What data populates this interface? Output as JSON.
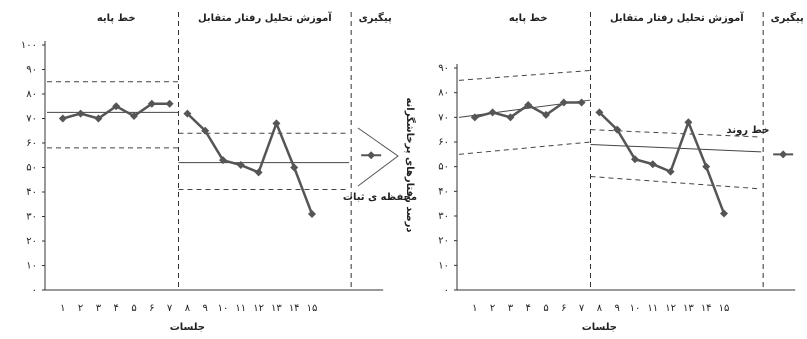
{
  "chart_data": [
    {
      "type": "line",
      "phases": [
        "خط پایه",
        "آموزش تحلیل رفتار متقابل",
        "پیگیری"
      ],
      "annotation": "محفظه ی ثبات",
      "xlabel": "جلسات",
      "categories": [
        "۱",
        "۲",
        "۳",
        "۴",
        "۵",
        "۶",
        "۷",
        "۸",
        "۹",
        "۱۰",
        "۱۱",
        "۱۲",
        "۱۳",
        "۱۴",
        "۱۵"
      ],
      "series": [
        {
          "color": "#555555",
          "values": [
            70,
            72,
            70,
            75,
            71,
            76,
            76,
            null,
            null,
            null,
            null,
            null,
            null,
            null,
            null
          ]
        },
        {
          "color": "#555555",
          "values": [
            null,
            null,
            null,
            null,
            null,
            null,
            null,
            72,
            65,
            53,
            51,
            48,
            68,
            50,
            31
          ]
        }
      ],
      "followup": 55,
      "lines": [
        {
          "phase": 0,
          "y": [
            72.5,
            72.5
          ],
          "dash": false
        },
        {
          "phase": 0,
          "y": [
            85,
            85
          ],
          "dash": true
        },
        {
          "phase": 0,
          "y": [
            58,
            58
          ],
          "dash": true
        },
        {
          "phase": 1,
          "y": [
            52,
            52
          ],
          "dash": false
        },
        {
          "phase": 1,
          "y": [
            64,
            64
          ],
          "dash": true
        },
        {
          "phase": 1,
          "y": [
            41,
            41
          ],
          "dash": true
        }
      ],
      "ylim": [
        0,
        100
      ],
      "yticks": [
        {
          "value": 0,
          "label": "۰"
        },
        {
          "value": 10,
          "label": "۱۰"
        },
        {
          "value": 20,
          "label": "۲۰"
        },
        {
          "value": 30,
          "label": "۳۰"
        },
        {
          "value": 40,
          "label": "۴۰"
        },
        {
          "value": 50,
          "label": "۵۰"
        },
        {
          "value": 60,
          "label": "۶۰"
        },
        {
          "value": 70,
          "label": "۷۰"
        },
        {
          "value": 80,
          "label": "۸۰"
        },
        {
          "value": 90,
          "label": "۹۰"
        },
        {
          "value": 100,
          "label": "۱۰۰"
        }
      ]
    },
    {
      "type": "line",
      "phases": [
        "خط پایه",
        "آموزش تحلیل رفتار متقابل",
        "پیگیری"
      ],
      "annotation": "خط روند",
      "ylabel": "درصد رفتارهای پرخاشگرانه",
      "xlabel": "جلسات",
      "categories": [
        "۱",
        "۲",
        "۳",
        "۴",
        "۵",
        "۶",
        "۷",
        "۸",
        "۹",
        "۱۰",
        "۱۱",
        "۱۲",
        "۱۳",
        "۱۴",
        "۱۵"
      ],
      "series": [
        {
          "color": "#555555",
          "values": [
            70,
            72,
            70,
            75,
            71,
            76,
            76,
            null,
            null,
            null,
            null,
            null,
            null,
            null,
            null
          ]
        },
        {
          "color": "#555555",
          "values": [
            null,
            null,
            null,
            null,
            null,
            null,
            null,
            72,
            65,
            53,
            51,
            48,
            68,
            50,
            31
          ]
        }
      ],
      "followup": 55,
      "lines": [
        {
          "phase": 0,
          "y": [
            70,
            77
          ],
          "dash": false
        },
        {
          "phase": 0,
          "y": [
            85,
            89
          ],
          "dash": true
        },
        {
          "phase": 0,
          "y": [
            55,
            60
          ],
          "dash": true
        },
        {
          "phase": 1,
          "y": [
            59,
            56
          ],
          "dash": false
        },
        {
          "phase": 1,
          "y": [
            65,
            62
          ],
          "dash": true
        },
        {
          "phase": 1,
          "y": [
            46,
            41
          ],
          "dash": true
        }
      ],
      "ylim": [
        0,
        90
      ],
      "yticks": [
        {
          "value": 0,
          "label": "۰"
        },
        {
          "value": 10,
          "label": "۱۰"
        },
        {
          "value": 20,
          "label": "۲۰"
        },
        {
          "value": 30,
          "label": "۳۰"
        },
        {
          "value": 40,
          "label": "۴۰"
        },
        {
          "value": 50,
          "label": "۵۰"
        },
        {
          "value": 60,
          "label": "۶۰"
        },
        {
          "value": 70,
          "label": "۷۰"
        },
        {
          "value": 80,
          "label": "۸۰"
        },
        {
          "value": 90,
          "label": "۹۰"
        }
      ]
    }
  ]
}
